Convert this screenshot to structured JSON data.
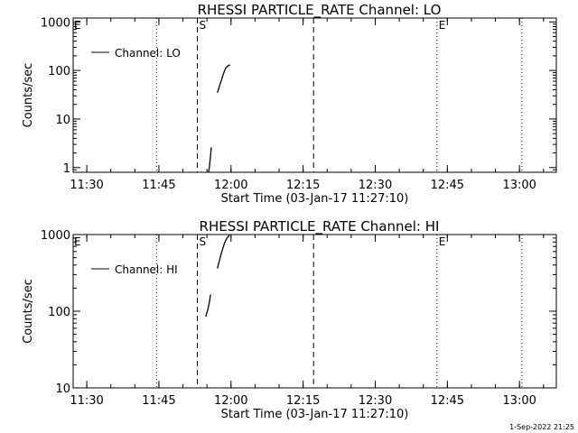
{
  "chart_data": [
    {
      "type": "line",
      "title": "RHESSI PARTICLE_RATE Channel: LO",
      "xlabel": "Start Time (03-Jan-17 11:27:10)",
      "ylabel": "Counts/sec",
      "y_scale": "log",
      "ylim": [
        0.8,
        1200
      ],
      "yticks": [
        1,
        10,
        100,
        1000
      ],
      "ytick_labels": [
        "1",
        "10",
        "100",
        "1000"
      ],
      "xlim": [
        "11:27:10",
        "13:07:40"
      ],
      "xticks": [
        "11:30",
        "11:45",
        "12:00",
        "12:15",
        "12:30",
        "12:45",
        "13:00"
      ],
      "legend": {
        "position": "top-left",
        "label": "Channel: LO"
      },
      "markers": [
        {
          "time": "11:53:00",
          "style": "dashed",
          "label": "S"
        },
        {
          "time": "12:17:10",
          "style": "dashed",
          "label": ""
        },
        {
          "time": "11:44:30",
          "style": "dotted",
          "label": ""
        },
        {
          "time": "12:42:50",
          "style": "dotted",
          "label": "E"
        },
        {
          "time": "13:00:30",
          "style": "dotted",
          "label": ""
        }
      ],
      "series": [
        {
          "segments": [
            [
              [
                "11:55:20",
                0.8
              ],
              [
                "11:55:30",
                1.0
              ],
              [
                "11:55:45",
                1.8
              ],
              [
                "11:55:55",
                2.6
              ]
            ],
            [
              [
                "11:57:10",
                35
              ],
              [
                "11:57:40",
                50
              ],
              [
                "11:58:20",
                80
              ],
              [
                "11:58:50",
                110
              ],
              [
                "11:59:20",
                125
              ],
              [
                "11:59:50",
                130
              ]
            ]
          ]
        }
      ]
    },
    {
      "type": "line",
      "title": "RHESSI PARTICLE_RATE Channel: HI",
      "xlabel": "Start Time (03-Jan-17 11:27:10)",
      "ylabel": "Counts/sec",
      "y_scale": "log",
      "ylim": [
        10,
        1000
      ],
      "yticks": [
        10,
        100,
        1000
      ],
      "ytick_labels": [
        "10",
        "100",
        "1000"
      ],
      "xlim": [
        "11:27:10",
        "13:07:40"
      ],
      "xticks": [
        "11:30",
        "11:45",
        "12:00",
        "12:15",
        "12:30",
        "12:45",
        "13:00"
      ],
      "legend": {
        "position": "top-left",
        "label": "Channel: HI"
      },
      "markers": [
        {
          "time": "11:53:00",
          "style": "dashed",
          "label": "S"
        },
        {
          "time": "12:17:10",
          "style": "dashed",
          "label": ""
        },
        {
          "time": "11:44:30",
          "style": "dotted",
          "label": ""
        },
        {
          "time": "12:42:50",
          "style": "dotted",
          "label": "E"
        },
        {
          "time": "13:00:30",
          "style": "dotted",
          "label": ""
        }
      ],
      "series": [
        {
          "segments": [
            [
              [
                "11:54:45",
                85
              ],
              [
                "11:55:10",
                105
              ],
              [
                "11:55:30",
                130
              ],
              [
                "11:55:45",
                165
              ]
            ],
            [
              [
                "11:57:10",
                360
              ],
              [
                "11:57:40",
                480
              ],
              [
                "11:58:10",
                620
              ],
              [
                "11:58:40",
                780
              ],
              [
                "11:59:10",
                900
              ],
              [
                "11:59:40",
                980
              ]
            ]
          ]
        }
      ]
    }
  ],
  "footer": {
    "timestamp": "1-Sep-2022 21:25"
  }
}
